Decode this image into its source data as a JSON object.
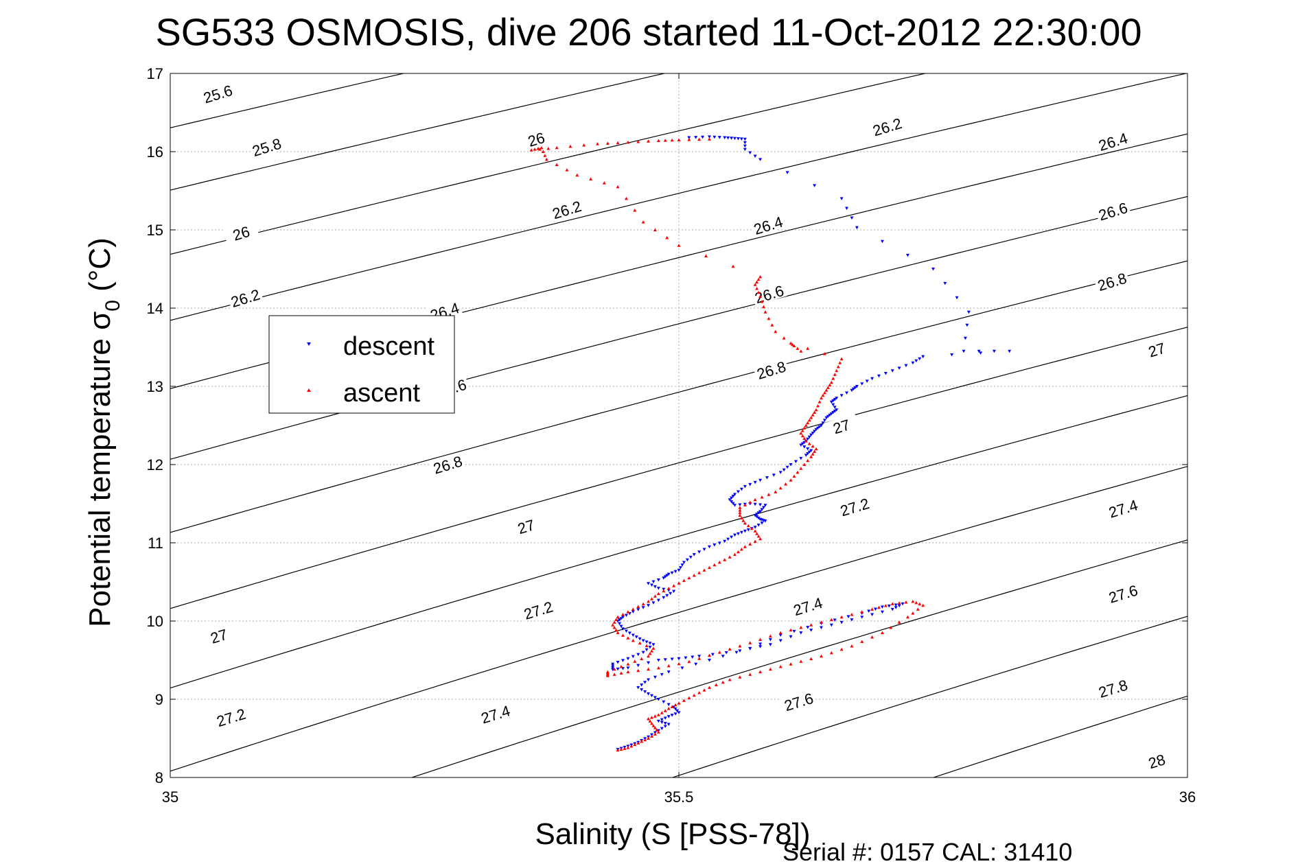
{
  "chart_data": {
    "type": "scatter",
    "title": "SG533 OSMOSIS, dive 206 started 11-Oct-2012 22:30:00",
    "xlabel": "Salinity (S [PSS-78])",
    "ylabel": "Potential temperature σ",
    "ylabel_subscript": "0",
    "ylabel_unit": " (°C)",
    "xlim": [
      35,
      36
    ],
    "ylim": [
      8,
      17
    ],
    "xticks": [
      35,
      35.5,
      36
    ],
    "xtick_labels": [
      "35",
      "35.5",
      "36"
    ],
    "yticks": [
      8,
      9,
      10,
      11,
      12,
      13,
      14,
      15,
      16,
      17
    ],
    "ytick_labels": [
      "8",
      "9",
      "10",
      "11",
      "12",
      "13",
      "14",
      "15",
      "16",
      "17"
    ],
    "grid": "dotted at x=35.5 and each integer temperature",
    "legend_position": "center-left",
    "footer": "Serial #: 0157  CAL: 31410",
    "isopycnals": {
      "levels": [
        25.6,
        25.8,
        26.0,
        26.2,
        26.4,
        26.6,
        26.8,
        27.0,
        27.2,
        27.4,
        27.6,
        27.8,
        28.0
      ],
      "color": "#000000",
      "labels": [
        {
          "text": "25.6",
          "x": 35.047,
          "y": 16.73
        },
        {
          "text": "25.8",
          "x": 35.095,
          "y": 16.05
        },
        {
          "text": "26",
          "x": 35.36,
          "y": 16.15
        },
        {
          "text": "26",
          "x": 35.07,
          "y": 14.95
        },
        {
          "text": "26.2",
          "x": 35.074,
          "y": 14.12
        },
        {
          "text": "26.2",
          "x": 35.39,
          "y": 15.25
        },
        {
          "text": "26.2",
          "x": 35.705,
          "y": 16.31
        },
        {
          "text": "26.4",
          "x": 35.27,
          "y": 13.95
        },
        {
          "text": "26.4",
          "x": 35.588,
          "y": 15.05
        },
        {
          "text": "26.4",
          "x": 35.927,
          "y": 16.12
        },
        {
          "text": "26.6",
          "x": 35.277,
          "y": 12.97
        },
        {
          "text": "26.6",
          "x": 35.589,
          "y": 14.17
        },
        {
          "text": "26.6",
          "x": 35.927,
          "y": 15.23
        },
        {
          "text": "26.8",
          "x": 35.273,
          "y": 11.99
        },
        {
          "text": "26.8",
          "x": 35.591,
          "y": 13.2
        },
        {
          "text": "26.8",
          "x": 35.926,
          "y": 14.33
        },
        {
          "text": "27",
          "x": 35.048,
          "y": 9.8
        },
        {
          "text": "27",
          "x": 35.35,
          "y": 11.2
        },
        {
          "text": "27",
          "x": 35.66,
          "y": 12.48
        },
        {
          "text": "27",
          "x": 35.97,
          "y": 13.46
        },
        {
          "text": "27.2",
          "x": 35.06,
          "y": 8.76
        },
        {
          "text": "27.2",
          "x": 35.362,
          "y": 10.13
        },
        {
          "text": "27.2",
          "x": 35.673,
          "y": 11.45
        },
        {
          "text": "27.4",
          "x": 35.32,
          "y": 8.8
        },
        {
          "text": "27.4",
          "x": 35.627,
          "y": 10.18
        },
        {
          "text": "27.4",
          "x": 35.937,
          "y": 11.43
        },
        {
          "text": "27.6",
          "x": 35.618,
          "y": 8.96
        },
        {
          "text": "27.6",
          "x": 35.937,
          "y": 10.34
        },
        {
          "text": "27.8",
          "x": 35.927,
          "y": 9.13
        },
        {
          "text": "28",
          "x": 35.97,
          "y": 8.2
        }
      ]
    },
    "series": [
      {
        "name": "descent",
        "color": "#0000ff",
        "marker": "triangle-down",
        "points": [
          [
            35.51,
            16.18
          ],
          [
            35.53,
            16.19
          ],
          [
            35.545,
            16.18
          ],
          [
            35.555,
            16.17
          ],
          [
            35.565,
            16.16
          ],
          [
            35.565,
            16.03
          ],
          [
            35.58,
            15.9
          ],
          [
            35.66,
            15.4
          ],
          [
            35.675,
            15.03
          ],
          [
            35.75,
            14.5
          ],
          [
            35.785,
            13.95
          ],
          [
            35.78,
            13.45
          ],
          [
            35.825,
            13.45
          ],
          [
            35.74,
            13.38
          ],
          [
            35.73,
            13.3
          ],
          [
            35.71,
            13.2
          ],
          [
            35.69,
            13.1
          ],
          [
            35.675,
            13.0
          ],
          [
            35.67,
            12.95
          ],
          [
            35.655,
            12.85
          ],
          [
            35.65,
            12.8
          ],
          [
            35.655,
            12.7
          ],
          [
            35.65,
            12.65
          ],
          [
            35.645,
            12.6
          ],
          [
            35.64,
            12.5
          ],
          [
            35.635,
            12.45
          ],
          [
            35.63,
            12.38
          ],
          [
            35.625,
            12.3
          ],
          [
            35.62,
            12.25
          ],
          [
            35.63,
            12.18
          ],
          [
            35.625,
            12.12
          ],
          [
            35.61,
            12.0
          ],
          [
            35.6,
            11.9
          ],
          [
            35.58,
            11.8
          ],
          [
            35.565,
            11.72
          ],
          [
            35.555,
            11.62
          ],
          [
            35.55,
            11.55
          ],
          [
            35.555,
            11.48
          ],
          [
            35.57,
            11.5
          ],
          [
            35.585,
            11.48
          ],
          [
            35.58,
            11.4
          ],
          [
            35.575,
            11.35
          ],
          [
            35.58,
            11.3
          ],
          [
            35.585,
            11.28
          ],
          [
            35.575,
            11.2
          ],
          [
            35.565,
            11.15
          ],
          [
            35.555,
            11.1
          ],
          [
            35.545,
            11.02
          ],
          [
            35.53,
            10.95
          ],
          [
            35.515,
            10.85
          ],
          [
            35.505,
            10.75
          ],
          [
            35.5,
            10.65
          ],
          [
            35.49,
            10.6
          ],
          [
            35.485,
            10.55
          ],
          [
            35.47,
            10.48
          ],
          [
            35.48,
            10.42
          ],
          [
            35.495,
            10.38
          ],
          [
            35.485,
            10.3
          ],
          [
            35.47,
            10.2
          ],
          [
            35.455,
            10.12
          ],
          [
            35.445,
            10.05
          ],
          [
            35.44,
            10.0
          ],
          [
            35.445,
            9.9
          ],
          [
            35.455,
            9.82
          ],
          [
            35.465,
            9.75
          ],
          [
            35.475,
            9.7
          ],
          [
            35.465,
            9.6
          ],
          [
            35.45,
            9.52
          ],
          [
            35.435,
            9.45
          ],
          [
            35.435,
            9.38
          ],
          [
            35.45,
            9.4
          ],
          [
            35.48,
            9.5
          ],
          [
            35.5,
            9.52
          ],
          [
            35.52,
            9.55
          ],
          [
            35.56,
            9.62
          ],
          [
            35.59,
            9.7
          ],
          [
            35.62,
            9.85
          ],
          [
            35.65,
            9.95
          ],
          [
            35.68,
            10.05
          ],
          [
            35.71,
            10.15
          ],
          [
            35.72,
            10.22
          ],
          [
            35.7,
            10.18
          ],
          [
            35.68,
            10.1
          ],
          [
            35.64,
            9.97
          ],
          [
            35.6,
            9.82
          ],
          [
            35.57,
            9.65
          ],
          [
            35.53,
            9.5
          ],
          [
            35.49,
            9.35
          ],
          [
            35.47,
            9.25
          ],
          [
            35.46,
            9.15
          ],
          [
            35.47,
            9.07
          ],
          [
            35.48,
            9.0
          ],
          [
            35.495,
            8.9
          ],
          [
            35.5,
            8.83
          ],
          [
            35.49,
            8.78
          ],
          [
            35.48,
            8.72
          ],
          [
            35.49,
            8.68
          ],
          [
            35.48,
            8.6
          ],
          [
            35.47,
            8.52
          ],
          [
            35.46,
            8.45
          ],
          [
            35.45,
            8.4
          ],
          [
            35.44,
            8.36
          ]
        ]
      },
      {
        "name": "ascent",
        "color": "#ff0000",
        "marker": "triangle-up",
        "points": [
          [
            35.44,
            8.35
          ],
          [
            35.45,
            8.38
          ],
          [
            35.46,
            8.44
          ],
          [
            35.47,
            8.5
          ],
          [
            35.48,
            8.58
          ],
          [
            35.475,
            8.66
          ],
          [
            35.47,
            8.75
          ],
          [
            35.48,
            8.8
          ],
          [
            35.49,
            8.88
          ],
          [
            35.5,
            8.95
          ],
          [
            35.515,
            9.05
          ],
          [
            35.53,
            9.15
          ],
          [
            35.55,
            9.25
          ],
          [
            35.58,
            9.35
          ],
          [
            35.61,
            9.45
          ],
          [
            35.64,
            9.55
          ],
          [
            35.67,
            9.68
          ],
          [
            35.7,
            9.85
          ],
          [
            35.725,
            10.05
          ],
          [
            35.74,
            10.2
          ],
          [
            35.73,
            10.25
          ],
          [
            35.71,
            10.22
          ],
          [
            35.69,
            10.15
          ],
          [
            35.66,
            10.05
          ],
          [
            35.63,
            9.95
          ],
          [
            35.6,
            9.85
          ],
          [
            35.57,
            9.72
          ],
          [
            35.54,
            9.6
          ],
          [
            35.51,
            9.48
          ],
          [
            35.48,
            9.4
          ],
          [
            35.45,
            9.35
          ],
          [
            35.43,
            9.3
          ],
          [
            35.43,
            9.35
          ],
          [
            35.45,
            9.45
          ],
          [
            35.47,
            9.55
          ],
          [
            35.475,
            9.65
          ],
          [
            35.455,
            9.75
          ],
          [
            35.44,
            9.85
          ],
          [
            35.435,
            9.95
          ],
          [
            35.44,
            10.05
          ],
          [
            35.455,
            10.15
          ],
          [
            35.47,
            10.25
          ],
          [
            35.48,
            10.35
          ],
          [
            35.495,
            10.45
          ],
          [
            35.51,
            10.55
          ],
          [
            35.525,
            10.65
          ],
          [
            35.54,
            10.75
          ],
          [
            35.555,
            10.85
          ],
          [
            35.565,
            10.95
          ],
          [
            35.58,
            11.05
          ],
          [
            35.575,
            11.15
          ],
          [
            35.565,
            11.25
          ],
          [
            35.56,
            11.35
          ],
          [
            35.56,
            11.45
          ],
          [
            35.575,
            11.55
          ],
          [
            35.595,
            11.65
          ],
          [
            35.61,
            11.8
          ],
          [
            35.62,
            11.95
          ],
          [
            35.63,
            12.1
          ],
          [
            35.635,
            12.2
          ],
          [
            35.625,
            12.3
          ],
          [
            35.62,
            12.4
          ],
          [
            35.625,
            12.5
          ],
          [
            35.63,
            12.6
          ],
          [
            35.635,
            12.7
          ],
          [
            35.64,
            12.85
          ],
          [
            35.645,
            12.95
          ],
          [
            35.65,
            13.05
          ],
          [
            35.655,
            13.2
          ],
          [
            35.66,
            13.35
          ],
          [
            35.61,
            13.55
          ],
          [
            35.62,
            13.45
          ],
          [
            35.595,
            13.7
          ],
          [
            35.585,
            13.95
          ],
          [
            35.58,
            14.15
          ],
          [
            35.575,
            14.3
          ],
          [
            35.58,
            14.4
          ],
          [
            35.5,
            14.8
          ],
          [
            35.465,
            15.1
          ],
          [
            35.44,
            15.55
          ],
          [
            35.4,
            15.7
          ],
          [
            35.37,
            15.9
          ],
          [
            35.365,
            16.05
          ],
          [
            35.355,
            16.02
          ],
          [
            35.38,
            16.05
          ],
          [
            35.42,
            16.1
          ],
          [
            35.45,
            16.12
          ],
          [
            35.48,
            16.14
          ],
          [
            35.5,
            16.15
          ],
          [
            35.53,
            16.16
          ]
        ]
      }
    ]
  }
}
